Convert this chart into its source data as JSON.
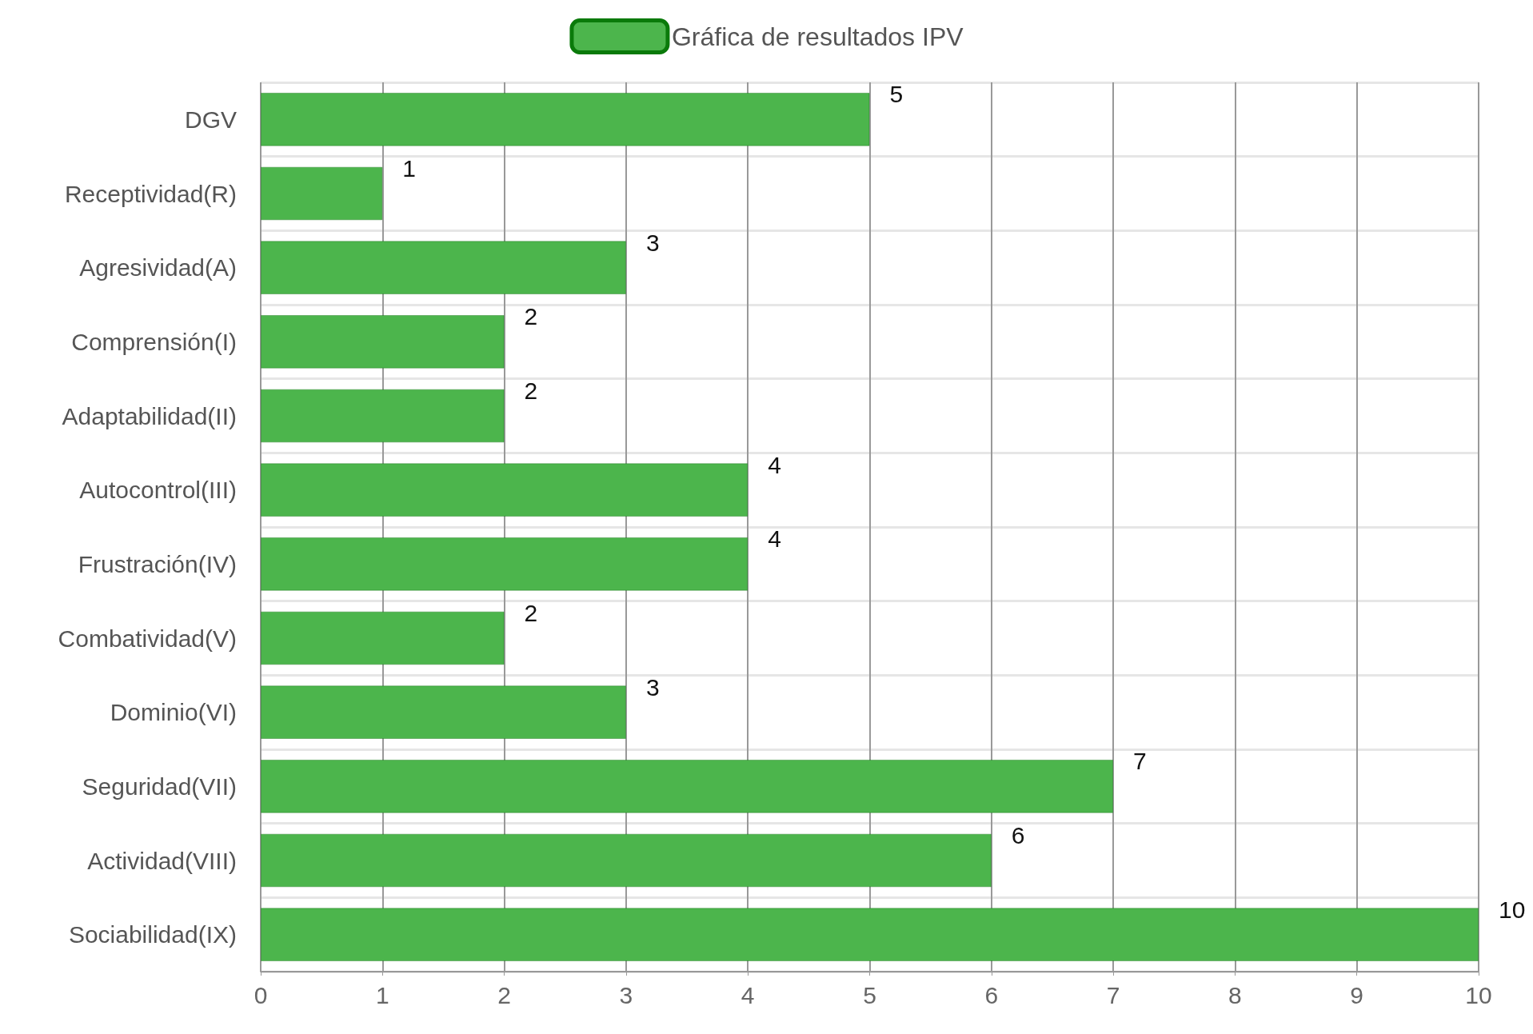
{
  "chart_data": {
    "type": "bar",
    "orientation": "horizontal",
    "categories": [
      "DGV",
      "Receptividad(R)",
      "Agresividad(A)",
      "Comprensión(I)",
      "Adaptabilidad(II)",
      "Autocontrol(III)",
      "Frustración(IV)",
      "Combatividad(V)",
      "Dominio(VI)",
      "Seguridad(VII)",
      "Actividad(VIII)",
      "Sociabilidad(IX)"
    ],
    "series": [
      {
        "name": "Gráfica de resultados IPV",
        "color": "#4cb54c",
        "values": [
          5,
          1,
          3,
          2,
          2,
          4,
          4,
          2,
          3,
          7,
          6,
          10
        ]
      }
    ],
    "xlim": [
      0,
      10
    ],
    "xticks": [
      0,
      1,
      2,
      3,
      4,
      5,
      6,
      7,
      8,
      9,
      10
    ],
    "grid": true,
    "legend": "top",
    "data_labels": true
  }
}
